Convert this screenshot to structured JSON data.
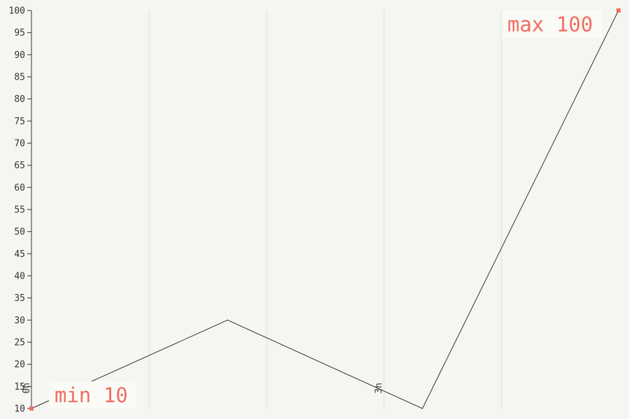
{
  "chart_data": {
    "type": "line",
    "title": "",
    "xlabel": "",
    "ylabel": "",
    "x": [
      0,
      1.67,
      3.33,
      5
    ],
    "x_tick_labels": [
      {
        "x": 0,
        "label": "0h"
      },
      {
        "x": 3,
        "label": "3h"
      }
    ],
    "xlim": [
      0,
      5
    ],
    "ylim": [
      10,
      100
    ],
    "y_ticks": [
      10,
      15,
      20,
      25,
      30,
      35,
      40,
      45,
      50,
      55,
      60,
      65,
      70,
      75,
      80,
      85,
      90,
      95,
      100
    ],
    "series": [
      {
        "values": [
          10,
          30,
          10,
          100
        ]
      }
    ],
    "vertical_gridlines": true,
    "horizontal_gridlines": false,
    "annotations": [
      {
        "label": "min",
        "value": "10",
        "x": 0,
        "y": 10
      },
      {
        "label": "max",
        "value": "100",
        "x": 5,
        "y": 100
      }
    ],
    "colors": {
      "background": "#f5f6f1",
      "line": "#333333",
      "accent": "#f26d64",
      "grid": "#e2e4de",
      "label_box": "#fafaf6"
    }
  }
}
